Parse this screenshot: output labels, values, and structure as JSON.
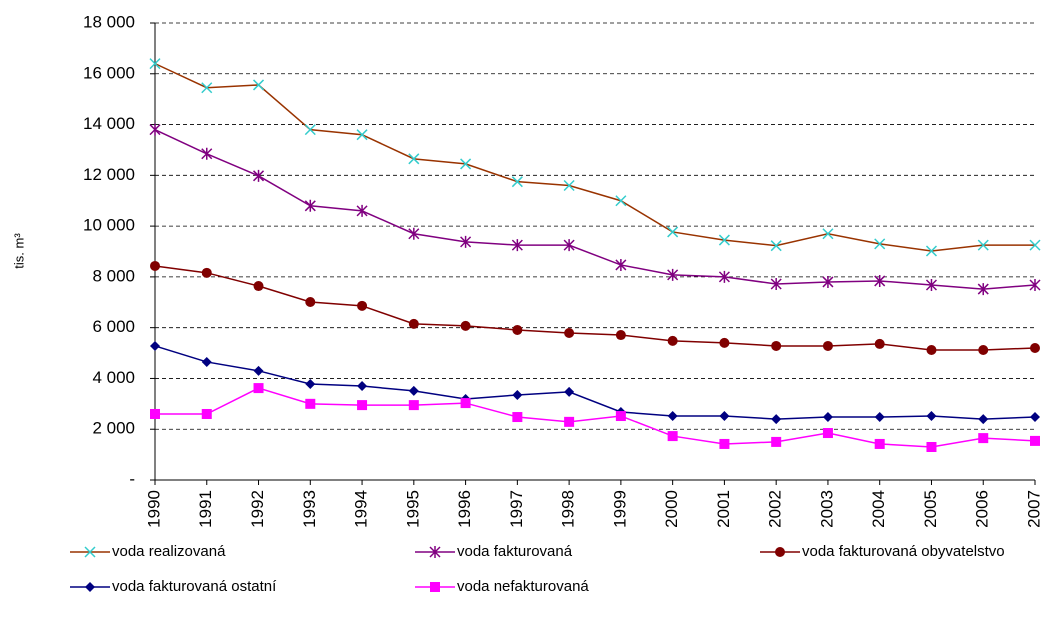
{
  "chart_data": {
    "type": "line",
    "ylabel": "tis. m³",
    "categories": [
      "1990",
      "1991",
      "1992",
      "1993",
      "1994",
      "1995",
      "1996",
      "1997",
      "1998",
      "1999",
      "2000",
      "2001",
      "2002",
      "2003",
      "2004",
      "2005",
      "2006",
      "2007"
    ],
    "ylim": [
      0,
      18000
    ],
    "yticks": [
      {
        "value": 0,
        "label": "-"
      },
      {
        "value": 2000,
        "label": "2 000"
      },
      {
        "value": 4000,
        "label": "4 000"
      },
      {
        "value": 6000,
        "label": "6 000"
      },
      {
        "value": 8000,
        "label": "8 000"
      },
      {
        "value": 10000,
        "label": "10 000"
      },
      {
        "value": 12000,
        "label": "12 000"
      },
      {
        "value": 14000,
        "label": "14 000"
      },
      {
        "value": 16000,
        "label": "16 000"
      },
      {
        "value": 18000,
        "label": "18 000"
      }
    ],
    "grid": true,
    "legend": "bottom",
    "series": [
      {
        "name": "voda realizovaná",
        "color": "#993300",
        "marker": "x",
        "marker_color": "#33CCCC",
        "values": [
          16400,
          15450,
          15560,
          13800,
          13600,
          12650,
          12450,
          11750,
          11600,
          11000,
          9770,
          9450,
          9230,
          9700,
          9300,
          9020,
          9250,
          9250
        ]
      },
      {
        "name": "voda fakturovaná",
        "color": "#800080",
        "marker": "star",
        "marker_color": "#800080",
        "values": [
          13800,
          12850,
          11980,
          10800,
          10600,
          9700,
          9380,
          9250,
          9250,
          8470,
          8080,
          8000,
          7720,
          7800,
          7840,
          7680,
          7520,
          7680
        ]
      },
      {
        "name": "voda fakturovaná obyvatelstvo",
        "color": "#800000",
        "marker": "circle",
        "marker_color": "#800000",
        "values": [
          8430,
          8160,
          7640,
          7010,
          6860,
          6150,
          6070,
          5910,
          5790,
          5710,
          5480,
          5400,
          5280,
          5280,
          5360,
          5120,
          5120,
          5200
        ]
      },
      {
        "name": "voda fakturovaná ostatní",
        "color": "#000080",
        "marker": "diamond",
        "marker_color": "#000080",
        "values": [
          5280,
          4650,
          4300,
          3780,
          3700,
          3510,
          3190,
          3350,
          3470,
          2680,
          2520,
          2520,
          2400,
          2480,
          2480,
          2520,
          2400,
          2480
        ]
      },
      {
        "name": "voda nefakturovaná",
        "color": "#FF00FF",
        "marker": "square",
        "marker_color": "#FF00FF",
        "values": [
          2600,
          2600,
          3620,
          3000,
          2950,
          2950,
          3030,
          2480,
          2290,
          2520,
          1730,
          1420,
          1500,
          1850,
          1420,
          1300,
          1650,
          1540
        ]
      }
    ]
  }
}
